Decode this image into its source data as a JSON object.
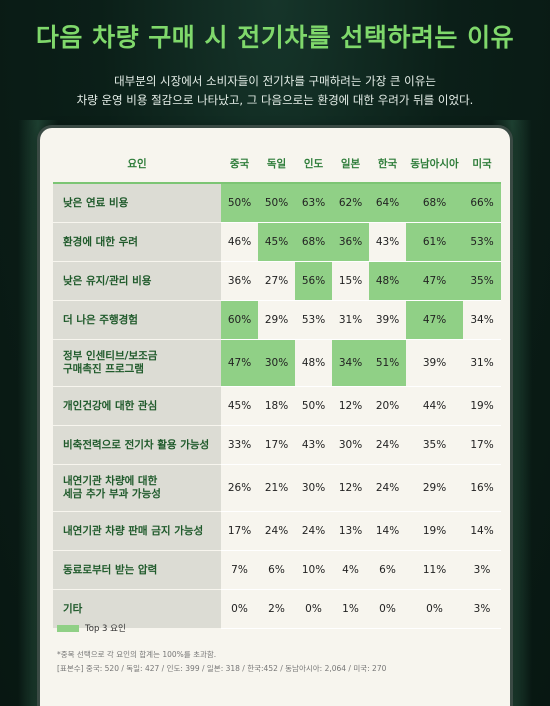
{
  "header": {
    "title": "다음 차량 구매 시 전기차를 선택하려는 이유",
    "subtitle_line1": "대부분의 시장에서 소비자들이 전기차를 구매하려는 가장 큰 이유는",
    "subtitle_line2": "차량 운영 비용 절감으로 나타났고, 그 다음으로는 환경에 대한 우려가 뒤를 이었다."
  },
  "colors": {
    "title": "#7fd86b",
    "highlight": "#90d086",
    "factor_bg": "#dcdcd4",
    "background": "#0b1f18"
  },
  "chart_data": {
    "type": "table",
    "title": "다음 차량 구매 시 전기차를 선택하려는 이유",
    "row_header": "요인",
    "columns": [
      "중국",
      "독일",
      "인도",
      "일본",
      "한국",
      "동남아시아",
      "미국"
    ],
    "rows": [
      {
        "label": "낮은 연료 비용",
        "values": [
          "50%",
          "50%",
          "63%",
          "62%",
          "64%",
          "68%",
          "66%"
        ],
        "top3": [
          true,
          true,
          true,
          true,
          true,
          true,
          true
        ]
      },
      {
        "label": "환경에 대한 우려",
        "values": [
          "46%",
          "45%",
          "68%",
          "36%",
          "43%",
          "61%",
          "53%"
        ],
        "top3": [
          false,
          true,
          true,
          true,
          false,
          true,
          true
        ]
      },
      {
        "label": "낮은 유지/관리 비용",
        "values": [
          "36%",
          "27%",
          "56%",
          "15%",
          "48%",
          "47%",
          "35%"
        ],
        "top3": [
          false,
          false,
          true,
          false,
          true,
          true,
          true
        ]
      },
      {
        "label": "더 나은 주행경험",
        "values": [
          "60%",
          "29%",
          "53%",
          "31%",
          "39%",
          "47%",
          "34%"
        ],
        "top3": [
          true,
          false,
          false,
          false,
          false,
          true,
          false
        ]
      },
      {
        "label": "정부 인센티브/보조금\n구매촉진 프로그램",
        "values": [
          "47%",
          "30%",
          "48%",
          "34%",
          "51%",
          "39%",
          "31%"
        ],
        "top3": [
          true,
          true,
          false,
          true,
          true,
          false,
          false
        ]
      },
      {
        "label": "개인건강에 대한 관심",
        "values": [
          "45%",
          "18%",
          "50%",
          "12%",
          "20%",
          "44%",
          "19%"
        ],
        "top3": [
          false,
          false,
          false,
          false,
          false,
          false,
          false
        ]
      },
      {
        "label": "비축전력으로 전기차 활용 가능성",
        "values": [
          "33%",
          "17%",
          "43%",
          "30%",
          "24%",
          "35%",
          "17%"
        ],
        "top3": [
          false,
          false,
          false,
          false,
          false,
          false,
          false
        ]
      },
      {
        "label": "내연기관 차량에 대한\n세금 추가 부과 가능성",
        "values": [
          "26%",
          "21%",
          "30%",
          "12%",
          "24%",
          "29%",
          "16%"
        ],
        "top3": [
          false,
          false,
          false,
          false,
          false,
          false,
          false
        ]
      },
      {
        "label": "내연기관 차량 판매 금지 가능성",
        "values": [
          "17%",
          "24%",
          "24%",
          "13%",
          "14%",
          "19%",
          "14%"
        ],
        "top3": [
          false,
          false,
          false,
          false,
          false,
          false,
          false
        ]
      },
      {
        "label": "동료로부터 받는 압력",
        "values": [
          "7%",
          "6%",
          "10%",
          "4%",
          "6%",
          "11%",
          "3%"
        ],
        "top3": [
          false,
          false,
          false,
          false,
          false,
          false,
          false
        ]
      },
      {
        "label": "기타",
        "values": [
          "0%",
          "2%",
          "0%",
          "1%",
          "0%",
          "0%",
          "3%"
        ],
        "top3": [
          false,
          false,
          false,
          false,
          false,
          false,
          false
        ]
      }
    ]
  },
  "legend": {
    "label": "Top 3 요인"
  },
  "notes": {
    "line1": "*중복 선택으로 각 요인의 합계는 100%를 초과함.",
    "line2": "[표본수] 중국: 520 / 독일: 427 / 인도: 399 / 일본: 318 / 한국:452 / 동남아시아: 2,064 / 미국: 270"
  }
}
